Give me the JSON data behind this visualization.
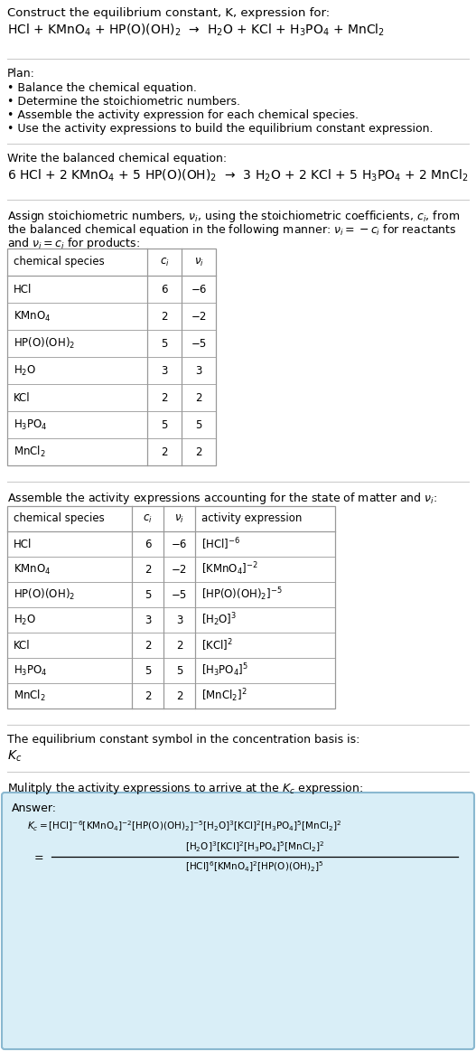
{
  "title_line1": "Construct the equilibrium constant, K, expression for:",
  "title_line2": "HCl + KMnO$_4$ + HP(O)(OH)$_2$  →  H$_2$O + KCl + H$_3$PO$_4$ + MnCl$_2$",
  "plan_header": "Plan:",
  "plan_items": [
    "• Balance the chemical equation.",
    "• Determine the stoichiometric numbers.",
    "• Assemble the activity expression for each chemical species.",
    "• Use the activity expressions to build the equilibrium constant expression."
  ],
  "balanced_header": "Write the balanced chemical equation:",
  "balanced_eq": "6 HCl + 2 KMnO$_4$ + 5 HP(O)(OH)$_2$  →  3 H$_2$O + 2 KCl + 5 H$_3$PO$_4$ + 2 MnCl$_2$",
  "assign_text_1": "Assign stoichiometric numbers, $\\nu_i$, using the stoichiometric coefficients, $c_i$, from",
  "assign_text_2": "the balanced chemical equation in the following manner: $\\nu_i = -c_i$ for reactants",
  "assign_text_3": "and $\\nu_i = c_i$ for products:",
  "table1_headers": [
    "chemical species",
    "$c_i$",
    "$\\nu_i$"
  ],
  "table1_rows": [
    [
      "HCl",
      "6",
      "−6"
    ],
    [
      "KMnO$_4$",
      "2",
      "−2"
    ],
    [
      "HP(O)(OH)$_2$",
      "5",
      "−5"
    ],
    [
      "H$_2$O",
      "3",
      "3"
    ],
    [
      "KCl",
      "2",
      "2"
    ],
    [
      "H$_3$PO$_4$",
      "5",
      "5"
    ],
    [
      "MnCl$_2$",
      "2",
      "2"
    ]
  ],
  "assemble_header": "Assemble the activity expressions accounting for the state of matter and $\\nu_i$:",
  "table2_headers": [
    "chemical species",
    "$c_i$",
    "$\\nu_i$",
    "activity expression"
  ],
  "table2_rows": [
    [
      "HCl",
      "6",
      "−6",
      "[HCl]$^{-6}$"
    ],
    [
      "KMnO$_4$",
      "2",
      "−2",
      "[KMnO$_4$]$^{-2}$"
    ],
    [
      "HP(O)(OH)$_2$",
      "5",
      "−5",
      "[HP(O)(OH)$_2$]$^{-5}$"
    ],
    [
      "H$_2$O",
      "3",
      "3",
      "[H$_2$O]$^3$"
    ],
    [
      "KCl",
      "2",
      "2",
      "[KCl]$^2$"
    ],
    [
      "H$_3$PO$_4$",
      "5",
      "5",
      "[H$_3$PO$_4$]$^5$"
    ],
    [
      "MnCl$_2$",
      "2",
      "2",
      "[MnCl$_2$]$^2$"
    ]
  ],
  "kc_text": "The equilibrium constant symbol in the concentration basis is:",
  "kc_symbol": "$K_c$",
  "multiply_text": "Mulitply the activity expressions to arrive at the $K_c$ expression:",
  "answer_label": "Answer:",
  "bg_color": "#ffffff",
  "answer_bg_color": "#d9eef7",
  "answer_border_color": "#8ab8d0",
  "table_border_color": "#999999",
  "sep_line_color": "#cccccc",
  "text_color": "#000000",
  "fs_title": 9.5,
  "fs_body": 9.0,
  "fs_table": 8.5
}
